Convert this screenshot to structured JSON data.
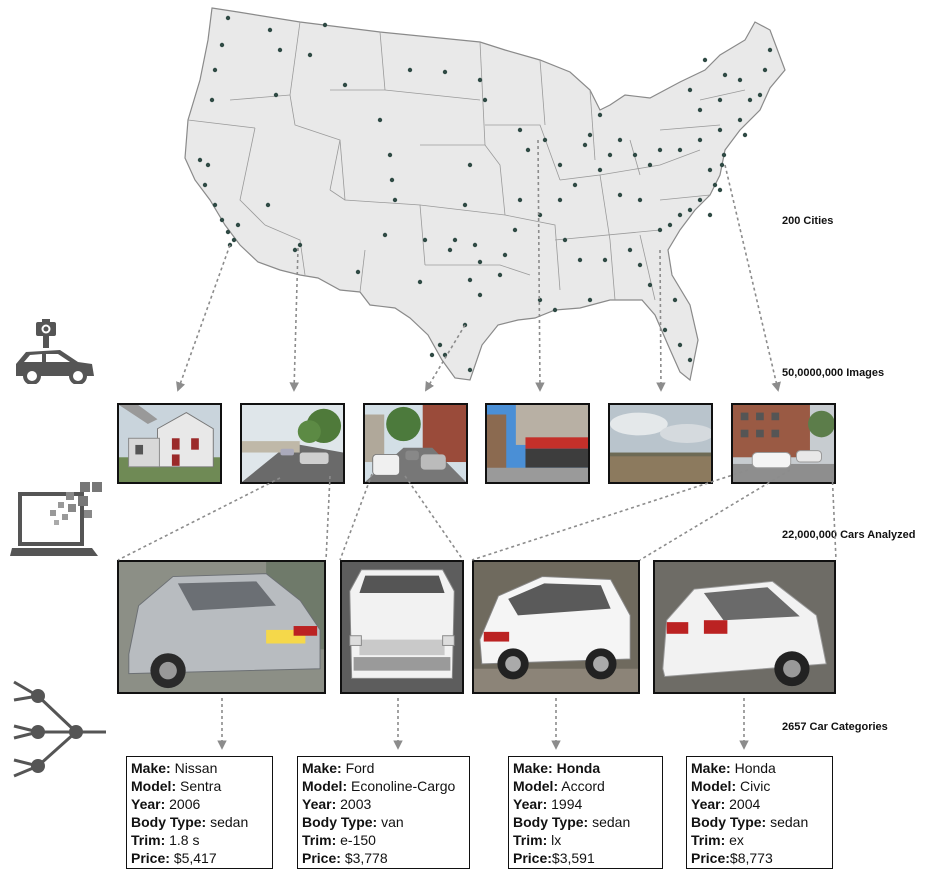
{
  "stages": {
    "cities": "200 Cities",
    "images": "50,0000,000 Images",
    "cars": "22,000,000 Cars Analyzed",
    "categories": "2657 Car Categories"
  },
  "icons": {
    "capture": "camera-car-icon",
    "detection": "laptop-icon",
    "classification": "network-icon"
  },
  "cards": [
    {
      "make_label": "Make:",
      "make": "Nissan",
      "make_bold": false,
      "model_label": "Model:",
      "model": "Sentra",
      "year_label": "Year:",
      "year": "2006",
      "body_label": "Body Type:",
      "body": "sedan",
      "trim_label": "Trim:",
      "trim": "1.8 s",
      "price_label": "Price:",
      "price": "$5,417"
    },
    {
      "make_label": "Make:",
      "make": "Ford",
      "make_bold": false,
      "model_label": "Model:",
      "model": "Econoline-Cargo",
      "year_label": "Year:",
      "year": "2003",
      "body_label": "Body Type:",
      "body": "van",
      "trim_label": "Trim:",
      "trim": "e-150",
      "price_label": "Price:",
      "price": "$3,778"
    },
    {
      "make_label": "Make:",
      "make": "Honda",
      "make_bold": true,
      "model_label": "Model:",
      "model": "Accord",
      "year_label": "Year:",
      "year": "1994",
      "body_label": "Body Type:",
      "body": "sedan",
      "trim_label": "Trim:",
      "trim": "lx",
      "price_label": "Price:",
      "price": "$3,591"
    },
    {
      "make_label": "Make:",
      "make": "Honda",
      "make_bold": false,
      "model_label": "Model:",
      "model": "Civic",
      "year_label": "Year:",
      "year": "2004",
      "body_label": "Body Type:",
      "body": "sedan",
      "trim_label": "Trim:",
      "trim": "ex",
      "price_label": "Price:",
      "price": "$8,773"
    }
  ],
  "colors": {
    "map_fill": "#e9e9e9",
    "map_stroke": "#8a8a8a",
    "city_dot": "#2f4a44",
    "arrow": "#8c8c8c",
    "car_silver": "#b8bcc0",
    "car_white": "#f2f2f2"
  }
}
